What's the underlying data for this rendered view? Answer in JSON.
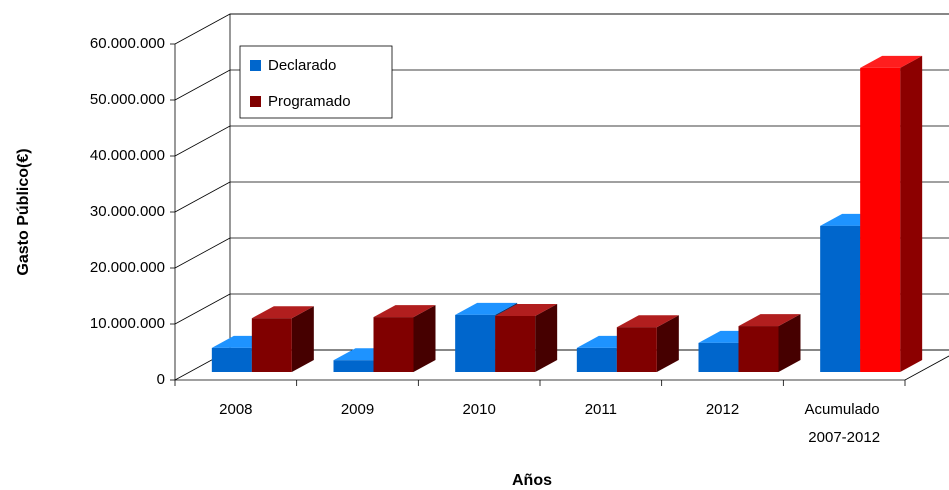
{
  "chart_data": {
    "type": "bar3d",
    "x_label": "Años",
    "y_label": "Gasto Público(€)",
    "categories": [
      "2008",
      "2009",
      "2010",
      "2011",
      "2012",
      "Acumulado 2007-2012"
    ],
    "series": [
      {
        "name": "Declarado",
        "color": "#0066cc",
        "values": [
          4300000,
          2100000,
          10200000,
          4300000,
          5200000,
          26100000
        ]
      },
      {
        "name": "Programado",
        "color": "#800000",
        "colors": [
          "#800000",
          "#800000",
          "#800000",
          "#800000",
          "#800000",
          "#ff0000"
        ],
        "values": [
          9600000,
          9800000,
          10000000,
          8000000,
          8200000,
          54300000
        ]
      }
    ],
    "ylim": [
      0,
      60000000
    ],
    "yticks": [
      0,
      {
        "value": 10000000,
        "label": "10.000.000"
      },
      {
        "value": 20000000,
        "label": "20.000.000"
      },
      {
        "value": 30000000,
        "label": "30.000.000"
      },
      {
        "value": 40000000,
        "label": "40.000.000"
      },
      {
        "value": 50000000,
        "label": "50.000.000"
      },
      {
        "value": 60000000,
        "label": "60.000.000"
      }
    ],
    "grid": true,
    "legend": "upper left"
  }
}
